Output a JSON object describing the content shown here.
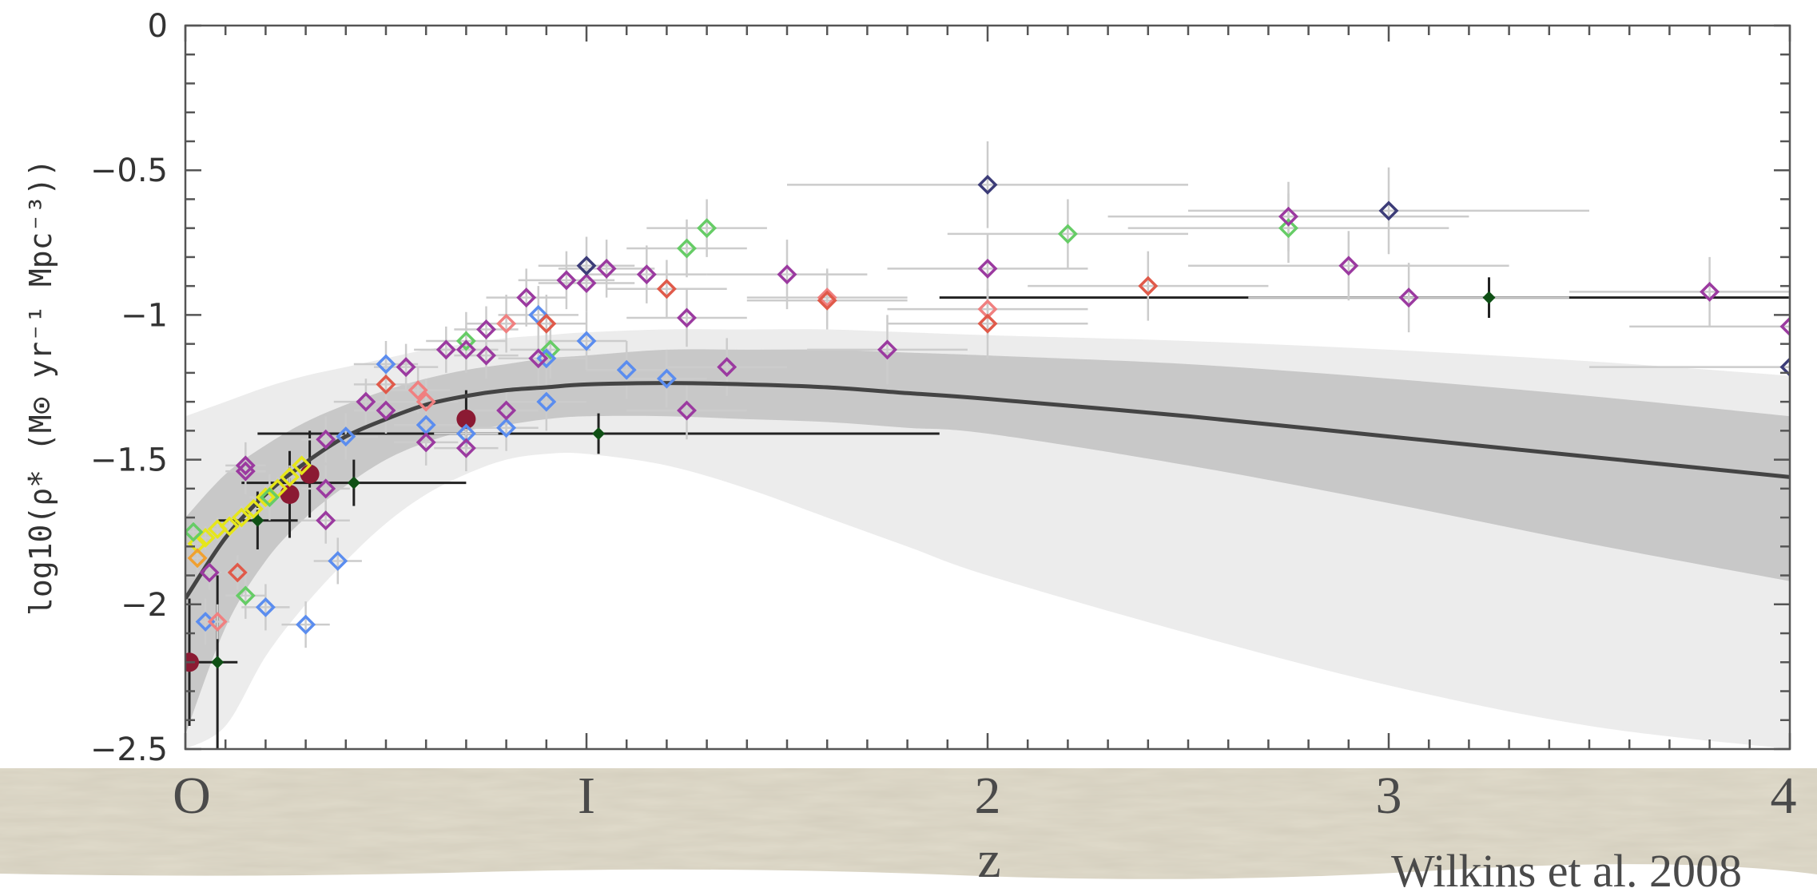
{
  "chart_data": {
    "type": "scatter",
    "title": "",
    "xlabel": "z",
    "ylabel": "log10(ρ̇* (M⊙ yr⁻¹ Mpc⁻³))",
    "xlim": [
      0,
      4
    ],
    "ylim": [
      -2.5,
      0
    ],
    "xticks": [
      {
        "value": 0,
        "label": "O"
      },
      {
        "value": 1,
        "label": "I"
      },
      {
        "value": 2,
        "label": "2"
      },
      {
        "value": 3,
        "label": "3"
      },
      {
        "value": 4,
        "label": "4"
      }
    ],
    "yticks": [
      {
        "value": 0,
        "label": "0"
      },
      {
        "value": -0.5,
        "label": "−0.5"
      },
      {
        "value": -1,
        "label": "−1"
      },
      {
        "value": -1.5,
        "label": "−1.5"
      },
      {
        "value": -2,
        "label": "−2"
      },
      {
        "value": -2.5,
        "label": "−2.5"
      }
    ],
    "credit": "Wilkins et al. 2008",
    "best_fit": {
      "x": [
        0,
        0.1,
        0.2,
        0.3,
        0.4,
        0.5,
        0.6,
        0.7,
        0.8,
        0.9,
        1.0,
        1.2,
        1.4,
        1.6,
        1.8,
        2.0,
        2.5,
        3.0,
        3.5,
        4.0
      ],
      "y": [
        -1.98,
        -1.77,
        -1.62,
        -1.51,
        -1.42,
        -1.36,
        -1.31,
        -1.28,
        -1.26,
        -1.25,
        -1.24,
        -1.235,
        -1.24,
        -1.25,
        -1.27,
        -1.29,
        -1.35,
        -1.42,
        -1.49,
        -1.56
      ],
      "inner_lower": [
        -2.45,
        -2.08,
        -1.85,
        -1.7,
        -1.59,
        -1.5,
        -1.44,
        -1.4,
        -1.38,
        -1.36,
        -1.35,
        -1.35,
        -1.36,
        -1.37,
        -1.39,
        -1.41,
        -1.52,
        -1.65,
        -1.79,
        -1.92
      ],
      "inner_upper": [
        -1.7,
        -1.55,
        -1.45,
        -1.37,
        -1.31,
        -1.26,
        -1.22,
        -1.19,
        -1.17,
        -1.15,
        -1.14,
        -1.12,
        -1.12,
        -1.12,
        -1.13,
        -1.14,
        -1.17,
        -1.22,
        -1.28,
        -1.35
      ],
      "outer_lower": [
        -2.5,
        -2.42,
        -2.18,
        -2.0,
        -1.85,
        -1.72,
        -1.62,
        -1.55,
        -1.5,
        -1.48,
        -1.48,
        -1.52,
        -1.6,
        -1.7,
        -1.8,
        -1.9,
        -2.1,
        -2.28,
        -2.42,
        -2.5
      ],
      "outer_upper": [
        -1.35,
        -1.3,
        -1.25,
        -1.21,
        -1.18,
        -1.15,
        -1.12,
        -1.1,
        -1.08,
        -1.07,
        -1.06,
        -1.05,
        -1.05,
        -1.05,
        -1.06,
        -1.07,
        -1.09,
        -1.12,
        -1.16,
        -1.21
      ]
    },
    "markers": [
      {
        "x": 0.01,
        "y": -2.2,
        "shape": "circle",
        "color": "#8b1a33",
        "xerr": 0.0,
        "yerr": 0.22
      },
      {
        "x": 0.26,
        "y": -1.62,
        "shape": "circle",
        "color": "#8b1a33",
        "xerr": 0.0,
        "yerr": 0.15
      },
      {
        "x": 0.31,
        "y": -1.55,
        "shape": "circle",
        "color": "#8b1a33",
        "xerr": 0.0,
        "yerr": 0.15
      },
      {
        "x": 0.7,
        "y": -1.36,
        "shape": "circle",
        "color": "#8b1a33",
        "xerr": 0.0,
        "yerr": 0.1
      },
      {
        "x": 0.08,
        "y": -2.2,
        "shape": "small-diamond",
        "color": "#0f5015",
        "xerr": 0.05,
        "yerr": 0.3
      },
      {
        "x": 0.18,
        "y": -1.71,
        "shape": "small-diamond",
        "color": "#0f5015",
        "xerr": 0.1,
        "yerr": 0.1
      },
      {
        "x": 0.42,
        "y": -1.58,
        "shape": "small-diamond",
        "color": "#0f5015",
        "xerr": 0.28,
        "yerr": 0.08
      },
      {
        "x": 1.03,
        "y": -1.41,
        "shape": "small-diamond",
        "color": "#0f5015",
        "xerr": 0.85,
        "yerr": 0.07
      },
      {
        "x": 3.25,
        "y": -0.94,
        "shape": "small-diamond",
        "color": "#0f5015",
        "xerr": 1.37,
        "yerr": 0.07
      },
      {
        "x": 0.03,
        "y": -1.79,
        "shape": "diamond",
        "color": "#e6e61a",
        "xerr": 0.02,
        "yerr": 0.04
      },
      {
        "x": 0.05,
        "y": -1.77,
        "shape": "diamond",
        "color": "#e6e61a",
        "xerr": 0.02,
        "yerr": 0.04
      },
      {
        "x": 0.08,
        "y": -1.74,
        "shape": "diamond",
        "color": "#e6e61a",
        "xerr": 0.02,
        "yerr": 0.04
      },
      {
        "x": 0.11,
        "y": -1.73,
        "shape": "diamond",
        "color": "#e6e61a",
        "xerr": 0.02,
        "yerr": 0.04
      },
      {
        "x": 0.14,
        "y": -1.7,
        "shape": "diamond",
        "color": "#e6e61a",
        "xerr": 0.02,
        "yerr": 0.04
      },
      {
        "x": 0.17,
        "y": -1.67,
        "shape": "diamond",
        "color": "#e6e61a",
        "xerr": 0.02,
        "yerr": 0.04
      },
      {
        "x": 0.2,
        "y": -1.63,
        "shape": "diamond",
        "color": "#e6e61a",
        "xerr": 0.02,
        "yerr": 0.04
      },
      {
        "x": 0.23,
        "y": -1.6,
        "shape": "diamond",
        "color": "#e6e61a",
        "xerr": 0.02,
        "yerr": 0.04
      },
      {
        "x": 0.26,
        "y": -1.56,
        "shape": "diamond",
        "color": "#e6e61a",
        "xerr": 0.02,
        "yerr": 0.04
      },
      {
        "x": 0.29,
        "y": -1.52,
        "shape": "diamond",
        "color": "#e6e61a",
        "xerr": 0.02,
        "yerr": 0.04
      },
      {
        "x": 0.03,
        "y": -1.84,
        "shape": "diamond",
        "color": "#f0a030",
        "xerr": 0.02,
        "yerr": 0.05
      },
      {
        "x": 0.02,
        "y": -1.75,
        "shape": "diamond",
        "color": "#66cc66",
        "xerr": 0.02,
        "yerr": 0.05
      },
      {
        "x": 0.15,
        "y": -1.97,
        "shape": "diamond",
        "color": "#66cc66",
        "xerr": 0.05,
        "yerr": 0.08
      },
      {
        "x": 0.21,
        "y": -1.63,
        "shape": "diamond",
        "color": "#66cc66",
        "xerr": 0.05,
        "yerr": 0.08
      },
      {
        "x": 0.7,
        "y": -1.09,
        "shape": "diamond",
        "color": "#66cc66",
        "xerr": 0.1,
        "yerr": 0.1
      },
      {
        "x": 0.91,
        "y": -1.12,
        "shape": "diamond",
        "color": "#66cc66",
        "xerr": 0.1,
        "yerr": 0.1
      },
      {
        "x": 1.25,
        "y": -0.77,
        "shape": "diamond",
        "color": "#66cc66",
        "xerr": 0.15,
        "yerr": 0.1
      },
      {
        "x": 1.3,
        "y": -0.7,
        "shape": "diamond",
        "color": "#66cc66",
        "xerr": 0.15,
        "yerr": 0.1
      },
      {
        "x": 2.2,
        "y": -0.72,
        "shape": "diamond",
        "color": "#66cc66",
        "xerr": 0.3,
        "yerr": 0.12
      },
      {
        "x": 2.75,
        "y": -0.7,
        "shape": "diamond",
        "color": "#66cc66",
        "xerr": 0.4,
        "yerr": 0.12
      },
      {
        "x": 0.05,
        "y": -2.06,
        "shape": "diamond",
        "color": "#5b8def",
        "xerr": 0.03,
        "yerr": 0.08
      },
      {
        "x": 0.2,
        "y": -2.01,
        "shape": "diamond",
        "color": "#5b8def",
        "xerr": 0.06,
        "yerr": 0.08
      },
      {
        "x": 0.3,
        "y": -2.07,
        "shape": "diamond",
        "color": "#5b8def",
        "xerr": 0.06,
        "yerr": 0.08
      },
      {
        "x": 0.38,
        "y": -1.85,
        "shape": "diamond",
        "color": "#5b8def",
        "xerr": 0.06,
        "yerr": 0.08
      },
      {
        "x": 0.4,
        "y": -1.42,
        "shape": "diamond",
        "color": "#5b8def",
        "xerr": 0.08,
        "yerr": 0.08
      },
      {
        "x": 0.5,
        "y": -1.17,
        "shape": "diamond",
        "color": "#5b8def",
        "xerr": 0.08,
        "yerr": 0.08
      },
      {
        "x": 0.6,
        "y": -1.38,
        "shape": "diamond",
        "color": "#5b8def",
        "xerr": 0.08,
        "yerr": 0.08
      },
      {
        "x": 0.7,
        "y": -1.41,
        "shape": "diamond",
        "color": "#5b8def",
        "xerr": 0.08,
        "yerr": 0.08
      },
      {
        "x": 0.8,
        "y": -1.39,
        "shape": "diamond",
        "color": "#5b8def",
        "xerr": 0.08,
        "yerr": 0.08
      },
      {
        "x": 0.88,
        "y": -1.0,
        "shape": "diamond",
        "color": "#5b8def",
        "xerr": 0.1,
        "yerr": 0.1
      },
      {
        "x": 0.9,
        "y": -1.3,
        "shape": "diamond",
        "color": "#5b8def",
        "xerr": 0.1,
        "yerr": 0.1
      },
      {
        "x": 0.9,
        "y": -1.15,
        "shape": "diamond",
        "color": "#5b8def",
        "xerr": 0.1,
        "yerr": 0.1
      },
      {
        "x": 1.0,
        "y": -1.09,
        "shape": "diamond",
        "color": "#5b8def",
        "xerr": 0.1,
        "yerr": 0.1
      },
      {
        "x": 1.1,
        "y": -1.19,
        "shape": "diamond",
        "color": "#5b8def",
        "xerr": 0.1,
        "yerr": 0.1
      },
      {
        "x": 1.2,
        "y": -1.22,
        "shape": "diamond",
        "color": "#5b8def",
        "xerr": 0.1,
        "yerr": 0.1
      },
      {
        "x": 0.08,
        "y": -2.06,
        "shape": "diamond",
        "color": "#f08080",
        "xerr": 0.03,
        "yerr": 0.06
      },
      {
        "x": 0.6,
        "y": -1.3,
        "shape": "diamond",
        "color": "#f08080",
        "xerr": 0.08,
        "yerr": 0.08
      },
      {
        "x": 0.58,
        "y": -1.26,
        "shape": "diamond",
        "color": "#f08080",
        "xerr": 0.08,
        "yerr": 0.08
      },
      {
        "x": 0.8,
        "y": -1.03,
        "shape": "diamond",
        "color": "#f08080",
        "xerr": 0.1,
        "yerr": 0.1
      },
      {
        "x": 1.6,
        "y": -0.94,
        "shape": "diamond",
        "color": "#f08080",
        "xerr": 0.2,
        "yerr": 0.1
      },
      {
        "x": 2.0,
        "y": -0.98,
        "shape": "diamond",
        "color": "#f08080",
        "xerr": 0.25,
        "yerr": 0.1
      },
      {
        "x": 0.13,
        "y": -1.89,
        "shape": "diamond",
        "color": "#e05a4a",
        "xerr": 0.03,
        "yerr": 0.06
      },
      {
        "x": 0.5,
        "y": -1.24,
        "shape": "diamond",
        "color": "#e05a4a",
        "xerr": 0.08,
        "yerr": 0.08
      },
      {
        "x": 0.9,
        "y": -1.03,
        "shape": "diamond",
        "color": "#e05a4a",
        "xerr": 0.1,
        "yerr": 0.1
      },
      {
        "x": 1.2,
        "y": -0.91,
        "shape": "diamond",
        "color": "#e05a4a",
        "xerr": 0.15,
        "yerr": 0.1
      },
      {
        "x": 1.6,
        "y": -0.95,
        "shape": "diamond",
        "color": "#e05a4a",
        "xerr": 0.2,
        "yerr": 0.1
      },
      {
        "x": 2.0,
        "y": -1.03,
        "shape": "diamond",
        "color": "#e05a4a",
        "xerr": 0.25,
        "yerr": 0.12
      },
      {
        "x": 2.4,
        "y": -0.9,
        "shape": "diamond",
        "color": "#e05a4a",
        "xerr": 0.3,
        "yerr": 0.12
      },
      {
        "x": 0.06,
        "y": -1.89,
        "shape": "diamond",
        "color": "#9b3aa0",
        "xerr": 0.03,
        "yerr": 0.06
      },
      {
        "x": 0.15,
        "y": -1.52,
        "shape": "diamond",
        "color": "#9b3aa0",
        "xerr": 0.05,
        "yerr": 0.08
      },
      {
        "x": 0.15,
        "y": -1.54,
        "shape": "diamond",
        "color": "#9b3aa0",
        "xerr": 0.05,
        "yerr": 0.08
      },
      {
        "x": 0.35,
        "y": -1.43,
        "shape": "diamond",
        "color": "#9b3aa0",
        "xerr": 0.06,
        "yerr": 0.08
      },
      {
        "x": 0.35,
        "y": -1.6,
        "shape": "diamond",
        "color": "#9b3aa0",
        "xerr": 0.06,
        "yerr": 0.08
      },
      {
        "x": 0.35,
        "y": -1.71,
        "shape": "diamond",
        "color": "#9b3aa0",
        "xerr": 0.06,
        "yerr": 0.08
      },
      {
        "x": 0.45,
        "y": -1.3,
        "shape": "diamond",
        "color": "#9b3aa0",
        "xerr": 0.08,
        "yerr": 0.08
      },
      {
        "x": 0.5,
        "y": -1.33,
        "shape": "diamond",
        "color": "#9b3aa0",
        "xerr": 0.08,
        "yerr": 0.08
      },
      {
        "x": 0.55,
        "y": -1.18,
        "shape": "diamond",
        "color": "#9b3aa0",
        "xerr": 0.08,
        "yerr": 0.08
      },
      {
        "x": 0.6,
        "y": -1.44,
        "shape": "diamond",
        "color": "#9b3aa0",
        "xerr": 0.08,
        "yerr": 0.08
      },
      {
        "x": 0.65,
        "y": -1.12,
        "shape": "diamond",
        "color": "#9b3aa0",
        "xerr": 0.08,
        "yerr": 0.08
      },
      {
        "x": 0.7,
        "y": -1.12,
        "shape": "diamond",
        "color": "#9b3aa0",
        "xerr": 0.08,
        "yerr": 0.08
      },
      {
        "x": 0.7,
        "y": -1.46,
        "shape": "diamond",
        "color": "#9b3aa0",
        "xerr": 0.08,
        "yerr": 0.08
      },
      {
        "x": 0.75,
        "y": -1.05,
        "shape": "diamond",
        "color": "#9b3aa0",
        "xerr": 0.08,
        "yerr": 0.08
      },
      {
        "x": 0.75,
        "y": -1.14,
        "shape": "diamond",
        "color": "#9b3aa0",
        "xerr": 0.08,
        "yerr": 0.08
      },
      {
        "x": 0.8,
        "y": -1.33,
        "shape": "diamond",
        "color": "#9b3aa0",
        "xerr": 0.08,
        "yerr": 0.08
      },
      {
        "x": 0.85,
        "y": -0.94,
        "shape": "diamond",
        "color": "#9b3aa0",
        "xerr": 0.1,
        "yerr": 0.1
      },
      {
        "x": 0.88,
        "y": -1.15,
        "shape": "diamond",
        "color": "#9b3aa0",
        "xerr": 0.1,
        "yerr": 0.1
      },
      {
        "x": 0.95,
        "y": -0.88,
        "shape": "diamond",
        "color": "#9b3aa0",
        "xerr": 0.12,
        "yerr": 0.1
      },
      {
        "x": 1.0,
        "y": -0.89,
        "shape": "diamond",
        "color": "#9b3aa0",
        "xerr": 0.12,
        "yerr": 0.1
      },
      {
        "x": 1.05,
        "y": -0.84,
        "shape": "diamond",
        "color": "#9b3aa0",
        "xerr": 0.12,
        "yerr": 0.1
      },
      {
        "x": 1.15,
        "y": -0.86,
        "shape": "diamond",
        "color": "#9b3aa0",
        "xerr": 0.15,
        "yerr": 0.1
      },
      {
        "x": 1.25,
        "y": -1.01,
        "shape": "diamond",
        "color": "#9b3aa0",
        "xerr": 0.15,
        "yerr": 0.1
      },
      {
        "x": 1.25,
        "y": -1.33,
        "shape": "diamond",
        "color": "#9b3aa0",
        "xerr": 0.15,
        "yerr": 0.1
      },
      {
        "x": 1.35,
        "y": -1.18,
        "shape": "diamond",
        "color": "#9b3aa0",
        "xerr": 0.15,
        "yerr": 0.1
      },
      {
        "x": 1.5,
        "y": -0.86,
        "shape": "diamond",
        "color": "#9b3aa0",
        "xerr": 0.2,
        "yerr": 0.12
      },
      {
        "x": 1.75,
        "y": -1.12,
        "shape": "diamond",
        "color": "#9b3aa0",
        "xerr": 0.2,
        "yerr": 0.12
      },
      {
        "x": 2.0,
        "y": -0.84,
        "shape": "diamond",
        "color": "#9b3aa0",
        "xerr": 0.25,
        "yerr": 0.12
      },
      {
        "x": 2.75,
        "y": -0.66,
        "shape": "diamond",
        "color": "#9b3aa0",
        "xerr": 0.45,
        "yerr": 0.12
      },
      {
        "x": 2.9,
        "y": -0.83,
        "shape": "diamond",
        "color": "#9b3aa0",
        "xerr": 0.4,
        "yerr": 0.12
      },
      {
        "x": 3.05,
        "y": -0.94,
        "shape": "diamond",
        "color": "#9b3aa0",
        "xerr": 0.4,
        "yerr": 0.12
      },
      {
        "x": 3.8,
        "y": -0.92,
        "shape": "diamond",
        "color": "#9b3aa0",
        "xerr": 0.35,
        "yerr": 0.12
      },
      {
        "x": 4.0,
        "y": -1.04,
        "shape": "diamond",
        "color": "#9b3aa0",
        "xerr": 0.4,
        "yerr": 0.12
      },
      {
        "x": 1.0,
        "y": -0.83,
        "shape": "diamond",
        "color": "#3c3c78",
        "xerr": 0.12,
        "yerr": 0.1
      },
      {
        "x": 2.0,
        "y": -0.55,
        "shape": "diamond",
        "color": "#3c3c78",
        "xerr": 0.5,
        "yerr": 0.15
      },
      {
        "x": 3.0,
        "y": -0.64,
        "shape": "diamond",
        "color": "#3c3c78",
        "xerr": 0.5,
        "yerr": 0.15
      },
      {
        "x": 4.0,
        "y": -1.18,
        "shape": "diamond",
        "color": "#3c3c78",
        "xerr": 0.5,
        "yerr": 0.15
      }
    ]
  },
  "colors": {
    "band_outer": "#ececec",
    "band_inner": "#c8c8c8",
    "fit_line": "#444444",
    "errorbar": "#cccccc",
    "axis": "#555555",
    "footer_bg": "#e0dbcb"
  }
}
